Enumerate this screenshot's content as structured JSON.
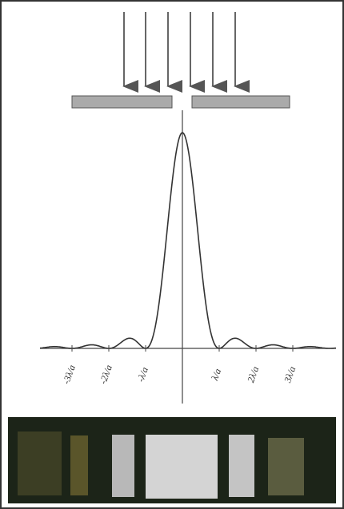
{
  "axis": {
    "tick_labels": [
      "-3λ/a",
      "-2λ/a",
      "-λ/a",
      "λ/a",
      "2λ/a",
      "3λ/a"
    ]
  }
}
